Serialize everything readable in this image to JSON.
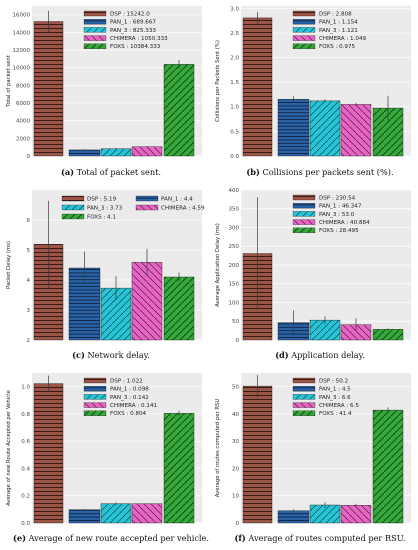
{
  "colors": {
    "DSP": "#9a5546",
    "PAN_1": "#2a64a8",
    "PAN_3": "#27c4d6",
    "CHIMERA": "#e766c4",
    "FOXS": "#35a83a",
    "plot_bg": "#ebebeb",
    "grid": "#ffffff"
  },
  "chart_data": [
    {
      "id": "a",
      "type": "bar",
      "categories": [
        "DSP",
        "PAN_1",
        "PAN_3",
        "CHIMERA",
        "FOXS"
      ],
      "values": [
        15242.0,
        689.667,
        825.333,
        1050.333,
        10384.333
      ],
      "errors": [
        1200,
        80,
        80,
        90,
        500
      ],
      "legend": [
        "DSP : 15242.0",
        "PAN_1 : 689.667",
        "PAN_3 : 825.333",
        "CHIMERA : 1050.333",
        "FOXS : 10384.333"
      ],
      "legend_layout": "column",
      "legend_position": "top-right",
      "ylabel": "Total of packet sent",
      "ylim": [
        0,
        17000
      ],
      "yticks": [
        0,
        2000,
        4000,
        6000,
        8000,
        10000,
        12000,
        14000,
        16000
      ],
      "ytick_labels": [
        "0",
        "2000",
        "4000",
        "6000",
        "8000",
        "10000",
        "12000",
        "14000",
        "16000"
      ],
      "caption_letter": "(a)",
      "caption_text": " Total of packet sent."
    },
    {
      "id": "b",
      "type": "bar",
      "categories": [
        "DSP",
        "PAN_1",
        "PAN_3",
        "CHIMERA",
        "FOXS"
      ],
      "values": [
        2.808,
        1.154,
        1.121,
        1.049,
        0.975
      ],
      "errors": [
        0.12,
        0.06,
        0.03,
        0.03,
        0.25
      ],
      "legend": [
        "DSP : 2.808",
        "PAN_1 : 1.154",
        "PAN_3 : 1.121",
        "CHIMERA : 1.049",
        "FOXS : 0.975"
      ],
      "legend_layout": "column",
      "legend_position": "top-right",
      "ylabel": "Collisions per Packets Sent (%)",
      "ylim": [
        0,
        3.05
      ],
      "yticks": [
        0,
        0.5,
        1.0,
        1.5,
        2.0,
        2.5,
        3.0
      ],
      "ytick_labels": [
        "0.0",
        "0.5",
        "1.0",
        "1.5",
        "2.0",
        "2.5",
        "3.0"
      ],
      "caption_letter": "(b)",
      "caption_text": " Collisions per packets sent (%)."
    },
    {
      "id": "c",
      "type": "bar",
      "categories": [
        "DSP",
        "PAN_1",
        "PAN_3",
        "CHIMERA",
        "FOXS"
      ],
      "values": [
        5.19,
        4.4,
        3.73,
        4.59,
        4.1
      ],
      "errors": [
        1.45,
        0.55,
        0.4,
        0.45,
        0.15
      ],
      "legend": [
        "DSP : 5.19",
        "PAN_1 : 4.4",
        "PAN_3 : 3.73",
        "CHIMERA : 4.59",
        "FOXS : 4.1"
      ],
      "legend_layout": "grid",
      "legend_position": "top",
      "ylabel": "Packet Delay (ms)",
      "ylim": [
        2,
        7
      ],
      "yticks": [
        2,
        3,
        4,
        5,
        6
      ],
      "ytick_labels": [
        "2",
        "3",
        "4",
        "5",
        "6"
      ],
      "caption_letter": "(c)",
      "caption_text": " Network delay."
    },
    {
      "id": "d",
      "type": "bar",
      "categories": [
        "DSP",
        "PAN_1",
        "PAN_3",
        "CHIMERA",
        "FOXS"
      ],
      "values": [
        230.54,
        46.347,
        53.0,
        40.884,
        28.495
      ],
      "errors": [
        150,
        33,
        10,
        17,
        3
      ],
      "legend": [
        "DSP : 230.54",
        "PAN_1 : 46.347",
        "PAN_3 : 53.0",
        "CHIMERA : 40.884",
        "FOXS : 28.495"
      ],
      "legend_layout": "column",
      "legend_position": "top-right",
      "ylabel": "Average Application Delay (ms)",
      "ylim": [
        0,
        400
      ],
      "yticks": [
        0,
        50,
        100,
        150,
        200,
        250,
        300,
        350,
        400
      ],
      "ytick_labels": [
        "0",
        "50",
        "100",
        "150",
        "200",
        "250",
        "300",
        "350",
        "400"
      ],
      "caption_letter": "(d)",
      "caption_text": " Application delay."
    },
    {
      "id": "e",
      "type": "bar",
      "categories": [
        "DSP",
        "PAN_1",
        "PAN_3",
        "CHIMERA",
        "FOXS"
      ],
      "values": [
        1.022,
        0.098,
        0.142,
        0.141,
        0.804
      ],
      "errors": [
        0.06,
        0.005,
        0.01,
        0.005,
        0.02
      ],
      "legend": [
        "DSP : 1.022",
        "PAN_1 : 0.098",
        "PAN_3 : 0.142",
        "CHIMERA : 0.141",
        "FOXS : 0.804"
      ],
      "legend_layout": "column",
      "legend_position": "top-right",
      "ylabel": "Average of new Route Accepted per Vehicle",
      "ylim": [
        0,
        1.1
      ],
      "yticks": [
        0,
        0.2,
        0.4,
        0.6,
        0.8,
        1.0
      ],
      "ytick_labels": [
        "0.0",
        "0.2",
        "0.4",
        "0.6",
        "0.8",
        "1.0"
      ],
      "caption_letter": "(e)",
      "caption_text": " Average of new route accepted per vehicle."
    },
    {
      "id": "f",
      "type": "bar",
      "categories": [
        "DSP",
        "PAN_1",
        "PAN_3",
        "CHIMERA",
        "FOXS"
      ],
      "values": [
        50.2,
        4.5,
        6.6,
        6.5,
        41.4
      ],
      "errors": [
        4,
        0.5,
        1,
        0.5,
        1
      ],
      "legend": [
        "DSP : 50.2",
        "PAN_1 : 4.5",
        "PAN_3 : 6.6",
        "CHIMERA : 6.5",
        "FOXS : 41.4"
      ],
      "legend_layout": "column",
      "legend_position": "top-right",
      "ylabel": "Average of routes computed per RSU",
      "ylim": [
        0,
        55
      ],
      "yticks": [
        0,
        10,
        20,
        30,
        40,
        50
      ],
      "ytick_labels": [
        "0",
        "10",
        "20",
        "30",
        "40",
        "50"
      ],
      "caption_letter": "(f)",
      "caption_text": " Average of routes computed per RSU."
    }
  ]
}
